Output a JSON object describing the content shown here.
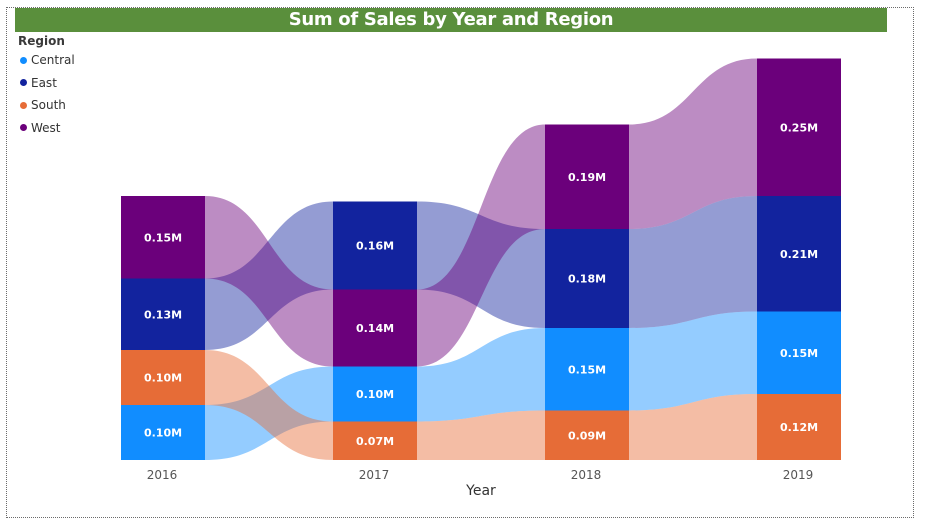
{
  "chart_data": {
    "type": "ribbon",
    "title": "Sum of Sales by Year and Region",
    "xlabel": "Year",
    "ylabel": "",
    "legend_title": "Region",
    "legend_position": "top-left",
    "categories": [
      "2016",
      "2017",
      "2018",
      "2019"
    ],
    "series": [
      {
        "name": "Central",
        "color": "#118dff",
        "ribbon_color": "#9ccaff",
        "values": [
          0.1,
          0.1,
          0.15,
          0.15
        ],
        "labels": [
          "0.10M",
          "0.10M",
          "0.15M",
          "0.15M"
        ]
      },
      {
        "name": "East",
        "color": "#12239e",
        "ribbon_color": "#98a2d6",
        "values": [
          0.13,
          0.16,
          0.18,
          0.21
        ],
        "labels": [
          "0.13M",
          "0.16M",
          "0.18M",
          "0.21M"
        ]
      },
      {
        "name": "South",
        "color": "#e66c37",
        "ribbon_color": "#f4c1ab",
        "values": [
          0.1,
          0.07,
          0.09,
          0.12
        ],
        "labels": [
          "0.10M",
          "0.07M",
          "0.09M",
          "0.12M"
        ]
      },
      {
        "name": "West",
        "color": "#6b007b",
        "ribbon_color": "#c090c8",
        "values": [
          0.15,
          0.14,
          0.19,
          0.25
        ],
        "labels": [
          "0.15M",
          "0.14M",
          "0.19M",
          "0.25M"
        ]
      }
    ],
    "stack_order_bottom_to_top": [
      [
        "Central",
        "South",
        "East",
        "West"
      ],
      [
        "South",
        "Central",
        "West",
        "East"
      ],
      [
        "South",
        "Central",
        "East",
        "West"
      ],
      [
        "South",
        "Central",
        "East",
        "West"
      ]
    ],
    "unit": "M",
    "grid": false
  }
}
